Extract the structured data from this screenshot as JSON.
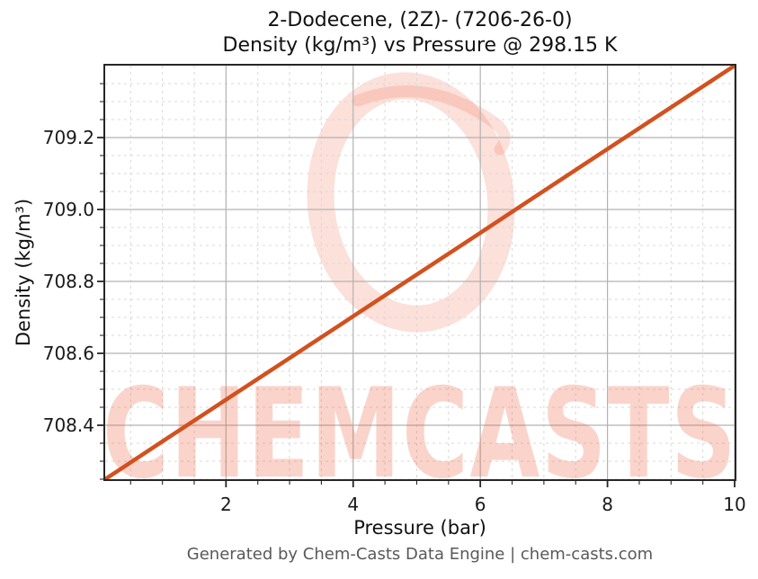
{
  "figure": {
    "title_line1": "2-Dodecene, (2Z)- (7206-26-0)",
    "title_line2": "Density (kg/m³) vs Pressure @ 298.15 K",
    "footer": "Generated by Chem-Casts Data Engine | chem-casts.com"
  },
  "chart_data": {
    "type": "line",
    "title": "2-Dodecene, (2Z)- (7206-26-0)\nDensity (kg/m³) vs Pressure @ 298.15 K",
    "xlabel": "Pressure (bar)",
    "ylabel": "Density (kg/m³)",
    "xlim": [
      0.1,
      10
    ],
    "ylim": [
      708.25,
      709.4
    ],
    "x_major_ticks": [
      2,
      4,
      6,
      8,
      10
    ],
    "x_minor_step": 0.5,
    "y_major_ticks": [
      708.4,
      708.6,
      708.8,
      709.0,
      709.2
    ],
    "y_minor_step": 0.05,
    "grid": {
      "major": true,
      "minor": true,
      "major_color": "#b2b2b2",
      "minor_color": "#d8d8d8",
      "minor_dashed": true
    },
    "legend": "none",
    "series": [
      {
        "name": "Density vs Pressure",
        "color": "#d2511e",
        "x": [
          0.1,
          1,
          2,
          3,
          4,
          5,
          6,
          7,
          8,
          9,
          10
        ],
        "y": [
          708.25,
          708.355,
          708.471,
          708.587,
          708.703,
          708.819,
          708.935,
          709.052,
          709.168,
          709.284,
          709.4
        ]
      }
    ],
    "watermark": {
      "text": "CHEMCASTS",
      "color": "#ee6446",
      "text_opacity": 0.28,
      "ring_opacity": 0.2
    },
    "axis_color": "#262626",
    "tick_label_format": {
      "x": "integer",
      "y": "one_decimal"
    }
  }
}
